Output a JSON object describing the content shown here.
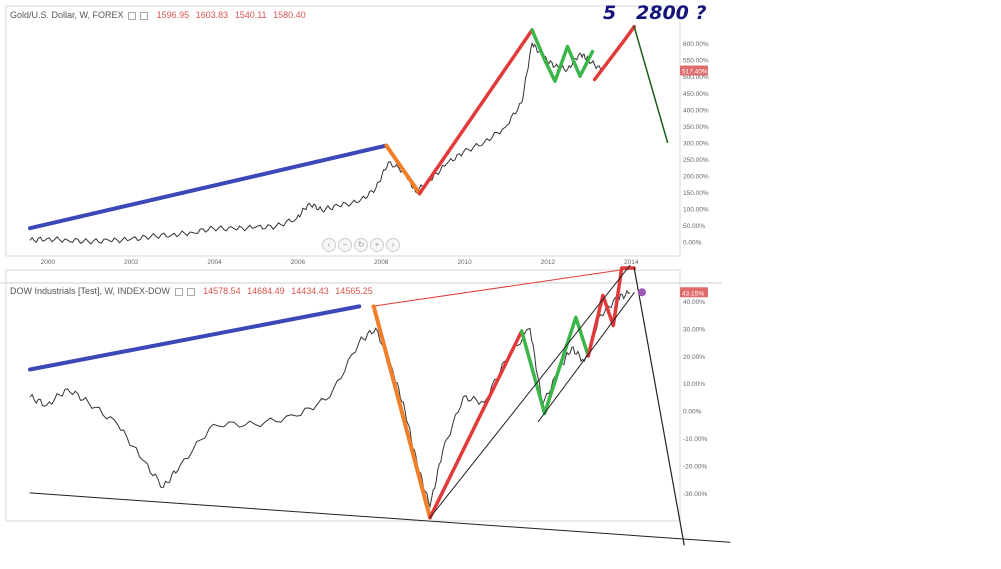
{
  "top_legend": {
    "title": "Gold/U.S. Dollar, W, FOREX",
    "ohlc": [
      "1596.95",
      "1603.83",
      "1540.11",
      "1580.40"
    ]
  },
  "bottom_legend": {
    "title": "DOW Industrials [Test], W, INDEX-DOW",
    "ohlc": [
      "14578.54",
      "14684.49",
      "14434.43",
      "14565.25"
    ]
  },
  "annotations": {
    "wave_label": "5",
    "target_label": "2800 ?"
  },
  "nav_icons": [
    "chevron-left-icon",
    "zoom-out-icon",
    "reset-icon",
    "zoom-in-icon",
    "chevron-right-icon"
  ],
  "colors": {
    "impulse_blue": "#3b48b8",
    "correction_orange": "#f07f2a",
    "wave_red": "#e23a3a",
    "wave_green": "#3cb54a",
    "projection": "#1a5c1a",
    "axis_text": "#666666",
    "value_badge": "#e06b6b",
    "dow_badge_marker": "#9b59b6"
  },
  "chart_data": [
    {
      "type": "line",
      "title": "Gold/U.S. Dollar, W, FOREX",
      "x_ticks": [
        "2000",
        "2002",
        "2004",
        "2006",
        "2008",
        "2010",
        "2012",
        "2014"
      ],
      "y_ticks": [
        "600.00%",
        "550.00%",
        "500.00%",
        "450.00%",
        "400.00%",
        "350.00%",
        "300.00%",
        "250.00%",
        "200.00%",
        "150.00%",
        "100.00%",
        "50.00%",
        "0.00%"
      ],
      "ylim": [
        -20,
        640
      ],
      "current_value_badge": "517.40%",
      "series": [
        {
          "style": "price",
          "x": [
            1999.6,
            2000.0,
            2000.5,
            2001.0,
            2001.5,
            2002.0,
            2002.5,
            2003.0,
            2003.5,
            2004.0,
            2004.5,
            2005.0,
            2005.5,
            2006.0,
            2006.3,
            2006.6,
            2007.0,
            2007.5,
            2007.9,
            2008.2,
            2008.6,
            2008.85,
            2009.2,
            2009.6,
            2010.0,
            2010.5,
            2011.0,
            2011.4,
            2011.65,
            2011.9,
            2012.2,
            2012.5,
            2012.8,
            2013.0,
            2013.3
          ],
          "y": [
            3,
            8,
            4,
            0,
            2,
            5,
            15,
            20,
            27,
            40,
            38,
            42,
            45,
            70,
            115,
            95,
            108,
            120,
            160,
            240,
            210,
            150,
            185,
            235,
            270,
            300,
            345,
            420,
            600,
            560,
            530,
            520,
            570,
            550,
            520
          ]
        },
        {
          "style": "impulse_blue",
          "x": [
            1999.6,
            2008.15
          ],
          "y": [
            40,
            290
          ]
        },
        {
          "style": "correction_orange",
          "x": [
            2008.15,
            2008.95
          ],
          "y": [
            290,
            145
          ]
        },
        {
          "style": "wave_red",
          "x": [
            2008.95,
            2011.65
          ],
          "y": [
            145,
            640
          ]
        },
        {
          "style": "wave_green",
          "x": [
            2011.65,
            2011.95,
            2012.2,
            2012.5,
            2012.8,
            2013.1
          ],
          "y": [
            640,
            550,
            485,
            590,
            500,
            575
          ]
        },
        {
          "style": "wave_red",
          "x": [
            2013.15,
            2013.9,
            2014.1
          ],
          "y": [
            490,
            615,
            650
          ]
        },
        {
          "style": "projection",
          "x": [
            2014.1,
            2014.9
          ],
          "y": [
            650,
            300
          ]
        }
      ]
    },
    {
      "type": "line",
      "title": "DOW Industrials [Test], W, INDEX-DOW",
      "y_ticks": [
        "40.00%",
        "30.00%",
        "20.00%",
        "10.00%",
        "0.00%",
        "-10.00%",
        "-20.00%",
        "-30.00%"
      ],
      "ylim": [
        -40,
        50
      ],
      "current_value_badge": "43.15%",
      "series": [
        {
          "style": "price",
          "x": [
            1999.6,
            2000.0,
            2000.5,
            2001.0,
            2001.7,
            2002.3,
            2002.8,
            2003.2,
            2004.0,
            2005.0,
            2006.0,
            2006.8,
            2007.5,
            2007.9,
            2008.3,
            2008.6,
            2008.9,
            2009.2,
            2009.5,
            2010.0,
            2010.5,
            2011.0,
            2011.6,
            2011.9,
            2012.3,
            2012.6,
            2012.9,
            2013.3,
            2013.7,
            2014.0
          ],
          "y": [
            5,
            2,
            8,
            3,
            -5,
            -18,
            -28,
            -20,
            -5,
            -5,
            -2,
            5,
            25,
            30,
            15,
            0,
            -20,
            -35,
            -15,
            5,
            3,
            18,
            30,
            2,
            15,
            23,
            18,
            35,
            41,
            43
          ]
        },
        {
          "style": "impulse_blue",
          "x": [
            1999.6,
            2007.5
          ],
          "y": [
            15,
            38
          ]
        },
        {
          "style": "resistance_red",
          "x": [
            2007.8,
            2014.1
          ],
          "y": [
            38,
            52
          ]
        },
        {
          "style": "correction_orange",
          "x": [
            2007.85,
            2009.2
          ],
          "y": [
            38,
            -39
          ]
        },
        {
          "style": "wave_red",
          "x": [
            2009.2,
            2011.4
          ],
          "y": [
            -39,
            29
          ]
        },
        {
          "style": "wave_green",
          "x": [
            2011.4,
            2011.95,
            2012.7,
            2013.0
          ],
          "y": [
            29,
            -1,
            34,
            20
          ]
        },
        {
          "style": "wave_red",
          "x": [
            2013.0,
            2013.35,
            2013.6,
            2013.8,
            2014.1
          ],
          "y": [
            20,
            42,
            31,
            52,
            52
          ]
        },
        {
          "style": "channel",
          "x": [
            2009.2,
            2014.0
          ],
          "y": [
            -39,
            53
          ]
        },
        {
          "style": "channel",
          "x": [
            2011.8,
            2014.1
          ],
          "y": [
            -4,
            43
          ]
        },
        {
          "style": "support",
          "x": [
            1999.6,
            2016.4
          ],
          "y": [
            -30,
            -48
          ]
        },
        {
          "style": "projection_black",
          "x": [
            2014.1,
            2015.3
          ],
          "y": [
            52,
            -49
          ]
        }
      ]
    }
  ]
}
